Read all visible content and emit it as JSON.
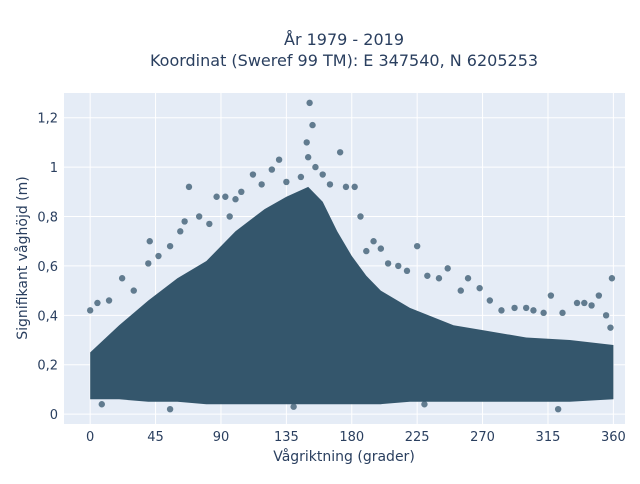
{
  "chart_data": {
    "type": "scatter",
    "title_lines": [
      "År 1979 - 2019",
      "Koordinat (Sweref 99 TM): E 347540, N 6205253"
    ],
    "xlabel": "Vågriktning (grader)",
    "ylabel": "Signifikant våghöjd (m)",
    "xlim": [
      -18,
      368
    ],
    "ylim": [
      -0.04,
      1.3
    ],
    "xticks": [
      0,
      45,
      90,
      135,
      180,
      225,
      270,
      315,
      360
    ],
    "yticks": [
      0,
      0.2,
      0.4,
      0.6,
      0.8,
      1,
      1.2
    ],
    "ytick_labels": [
      "0",
      "0,2",
      "0,4",
      "0,6",
      "0,8",
      "1",
      "1,2"
    ],
    "grid": true,
    "legend": "none",
    "marker_color": "#34566c",
    "background_color": "#e5ecf6",
    "envelope": {
      "direction": [
        0,
        20,
        40,
        60,
        80,
        100,
        120,
        135,
        150,
        160,
        170,
        180,
        190,
        200,
        220,
        250,
        270,
        300,
        330,
        360
      ],
      "upper_height": [
        0.25,
        0.36,
        0.46,
        0.55,
        0.62,
        0.74,
        0.83,
        0.88,
        0.92,
        0.86,
        0.74,
        0.64,
        0.56,
        0.5,
        0.43,
        0.36,
        0.34,
        0.31,
        0.3,
        0.28
      ],
      "lower_height": [
        0.06,
        0.06,
        0.05,
        0.05,
        0.04,
        0.04,
        0.04,
        0.04,
        0.04,
        0.04,
        0.04,
        0.04,
        0.04,
        0.04,
        0.05,
        0.05,
        0.05,
        0.05,
        0.05,
        0.06
      ]
    },
    "points": [
      {
        "x": 151,
        "y": 1.26
      },
      {
        "x": 153,
        "y": 1.17
      },
      {
        "x": 149,
        "y": 1.1
      },
      {
        "x": 150,
        "y": 1.04
      },
      {
        "x": 155,
        "y": 1.0
      },
      {
        "x": 172,
        "y": 1.06
      },
      {
        "x": 130,
        "y": 1.03
      },
      {
        "x": 125,
        "y": 0.99
      },
      {
        "x": 112,
        "y": 0.97
      },
      {
        "x": 68,
        "y": 0.92
      },
      {
        "x": 87,
        "y": 0.88
      },
      {
        "x": 96,
        "y": 0.8
      },
      {
        "x": 104,
        "y": 0.9
      },
      {
        "x": 176,
        "y": 0.92
      },
      {
        "x": 182,
        "y": 0.92
      },
      {
        "x": 186,
        "y": 0.8
      },
      {
        "x": 195,
        "y": 0.7
      },
      {
        "x": 190,
        "y": 0.66
      },
      {
        "x": 205,
        "y": 0.61
      },
      {
        "x": 212,
        "y": 0.6
      },
      {
        "x": 225,
        "y": 0.68
      },
      {
        "x": 240,
        "y": 0.55
      },
      {
        "x": 246,
        "y": 0.59
      },
      {
        "x": 260,
        "y": 0.55
      },
      {
        "x": 268,
        "y": 0.51
      },
      {
        "x": 283,
        "y": 0.42
      },
      {
        "x": 300,
        "y": 0.43
      },
      {
        "x": 312,
        "y": 0.41
      },
      {
        "x": 317,
        "y": 0.48
      },
      {
        "x": 325,
        "y": 0.41
      },
      {
        "x": 340,
        "y": 0.45
      },
      {
        "x": 350,
        "y": 0.48
      },
      {
        "x": 359,
        "y": 0.55
      },
      {
        "x": 355,
        "y": 0.4
      },
      {
        "x": 358,
        "y": 0.35
      },
      {
        "x": 0,
        "y": 0.42
      },
      {
        "x": 5,
        "y": 0.45
      },
      {
        "x": 13,
        "y": 0.46
      },
      {
        "x": 22,
        "y": 0.55
      },
      {
        "x": 30,
        "y": 0.5
      },
      {
        "x": 40,
        "y": 0.61
      },
      {
        "x": 41,
        "y": 0.7
      },
      {
        "x": 47,
        "y": 0.64
      },
      {
        "x": 55,
        "y": 0.68
      },
      {
        "x": 62,
        "y": 0.74
      },
      {
        "x": 65,
        "y": 0.78
      },
      {
        "x": 75,
        "y": 0.8
      },
      {
        "x": 82,
        "y": 0.77
      },
      {
        "x": 93,
        "y": 0.88
      },
      {
        "x": 100,
        "y": 0.87
      },
      {
        "x": 118,
        "y": 0.93
      },
      {
        "x": 135,
        "y": 0.94
      },
      {
        "x": 145,
        "y": 0.96
      },
      {
        "x": 160,
        "y": 0.97
      },
      {
        "x": 165,
        "y": 0.93
      },
      {
        "x": 200,
        "y": 0.67
      },
      {
        "x": 218,
        "y": 0.58
      },
      {
        "x": 232,
        "y": 0.56
      },
      {
        "x": 255,
        "y": 0.5
      },
      {
        "x": 275,
        "y": 0.46
      },
      {
        "x": 292,
        "y": 0.43
      },
      {
        "x": 305,
        "y": 0.42
      },
      {
        "x": 335,
        "y": 0.45
      },
      {
        "x": 345,
        "y": 0.44
      },
      {
        "x": 8,
        "y": 0.04
      },
      {
        "x": 55,
        "y": 0.02
      },
      {
        "x": 140,
        "y": 0.03
      },
      {
        "x": 230,
        "y": 0.04
      },
      {
        "x": 322,
        "y": 0.02
      }
    ]
  }
}
